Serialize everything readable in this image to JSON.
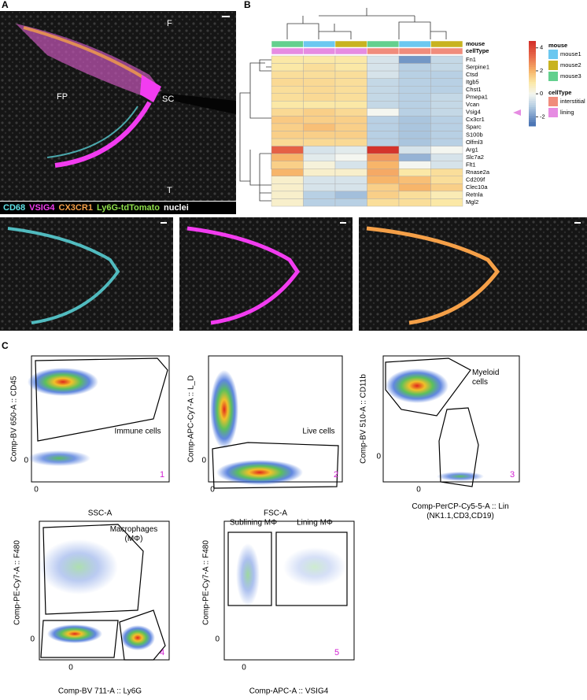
{
  "panel_a": {
    "label": "A",
    "image_labels": [
      "F",
      "FP",
      "SC",
      "T"
    ],
    "channels": [
      {
        "name": "CD68",
        "color": "#5fe3e8"
      },
      {
        "name": "VSIG4",
        "color": "#f23cf0"
      },
      {
        "name": "CX3CR1",
        "color": "#f5a048"
      },
      {
        "name": "Ly6G-tdTomato",
        "color": "#8fe04a"
      },
      {
        "name": "nuclei",
        "color": "#ffffff"
      }
    ]
  },
  "panel_b": {
    "label": "B",
    "annotation_rows": [
      "mouse",
      "cellType"
    ],
    "genes": [
      "Fn1",
      "Serpine1",
      "Ctsd",
      "Itgb5",
      "Chst1",
      "Pmepa1",
      "Vcan",
      "Vsig4",
      "Cx3cr1",
      "Sparc",
      "S100b",
      "Olfml3",
      "Arg1",
      "Slc7a2",
      "Flt1",
      "Rnase2a",
      "Cd209f",
      "Clec10a",
      "Retnla",
      "Mgl2"
    ],
    "column_mouse": [
      "mouse3",
      "mouse1",
      "mouse2",
      "mouse3",
      "mouse1",
      "mouse2"
    ],
    "column_celltype": [
      "lining",
      "lining",
      "lining",
      "interstitial",
      "interstitial",
      "interstitial"
    ],
    "values": [
      [
        1,
        1,
        1,
        -0.5,
        -2,
        -0.8
      ],
      [
        1,
        1.2,
        1,
        -0.5,
        -1,
        -0.8
      ],
      [
        1.2,
        1.2,
        1.2,
        -0.5,
        -1,
        -1
      ],
      [
        1.3,
        1.3,
        1.2,
        -0.8,
        -1,
        -1
      ],
      [
        1.2,
        1.3,
        1.2,
        -0.8,
        -1,
        -1
      ],
      [
        1.2,
        1.3,
        1.2,
        -0.8,
        -1,
        -0.8
      ],
      [
        1,
        1,
        1,
        -0.8,
        -1,
        -0.8
      ],
      [
        1.3,
        1.5,
        1.3,
        0,
        -1,
        -0.8
      ],
      [
        1.6,
        1.5,
        1.5,
        -1,
        -1.2,
        -1
      ],
      [
        1.5,
        1.8,
        1.5,
        -1,
        -1.2,
        -1
      ],
      [
        1.5,
        1.5,
        1.5,
        -1,
        -1.2,
        -1
      ],
      [
        1.3,
        1.3,
        1.3,
        -1,
        -1.2,
        -1
      ],
      [
        3.5,
        -0.5,
        -0.3,
        4.5,
        -0.5,
        0
      ],
      [
        2,
        -0.3,
        0,
        2.5,
        -1.5,
        -0.5
      ],
      [
        1.5,
        0.3,
        -0.5,
        2,
        0,
        -0.5
      ],
      [
        2,
        0.5,
        0.5,
        2.2,
        1,
        1.2
      ],
      [
        0.5,
        -0.5,
        -0.5,
        2,
        1.8,
        1.2
      ],
      [
        0.5,
        -0.5,
        -0.5,
        1.5,
        2,
        1.5
      ],
      [
        0.5,
        -1,
        -1.3,
        1.5,
        1.2,
        0.8
      ],
      [
        0.5,
        -1,
        -1,
        1.2,
        1.2,
        1
      ]
    ],
    "colorbar": {
      "lim": [
        -2.8,
        4.6
      ],
      "ticks": [
        4,
        2,
        0,
        -2
      ]
    },
    "legend": [
      {
        "title": "mouse",
        "items": [
          {
            "name": "mouse1",
            "color": "#6cc8f0"
          },
          {
            "name": "mouse2",
            "color": "#c8b320"
          },
          {
            "name": "mouse3",
            "color": "#63d08e"
          }
        ]
      },
      {
        "title": "cellType",
        "items": [
          {
            "name": "interstitial",
            "color": "#f08c7c"
          },
          {
            "name": "lining",
            "color": "#e68ce2"
          }
        ]
      }
    ]
  },
  "panel_c": {
    "label": "C",
    "plots": [
      {
        "ylabel": "Comp-BV 650-A :: CD45",
        "xlabel": "SSC-A",
        "xtick": 0,
        "ytick": 0,
        "gates": [
          "Immune cells"
        ],
        "number": 1
      },
      {
        "ylabel": "Comp-APC-Cy7-A :: L_D",
        "xlabel": "FSC-A",
        "xtick": 0,
        "ytick": 0,
        "gates": [
          "Live cells"
        ],
        "number": 2
      },
      {
        "ylabel": "Comp-BV 510-A :: CD11b",
        "xlabel": "Comp-PerCP-Cy5-5-A :: Lin (NK1.1,CD3,CD19)",
        "xtick": 0,
        "ytick": 0,
        "gates": [
          "Myeloid cells"
        ],
        "number": 3
      },
      {
        "ylabel": "Comp-PE-Cy7-A :: F480",
        "xlabel": "Comp-BV 711-A :: Ly6G",
        "xtick": 0,
        "ytick": 0,
        "gates": [
          "Macrophages (MΦ)"
        ],
        "number": 4
      },
      {
        "ylabel": "Comp-PE-Cy7-A :: F480",
        "xlabel": "Comp-APC-A :: VSIG4",
        "xtick": 0,
        "ytick": 0,
        "gates": [
          "Sublining MΦ",
          "Lining MΦ"
        ],
        "number": 5
      }
    ]
  }
}
